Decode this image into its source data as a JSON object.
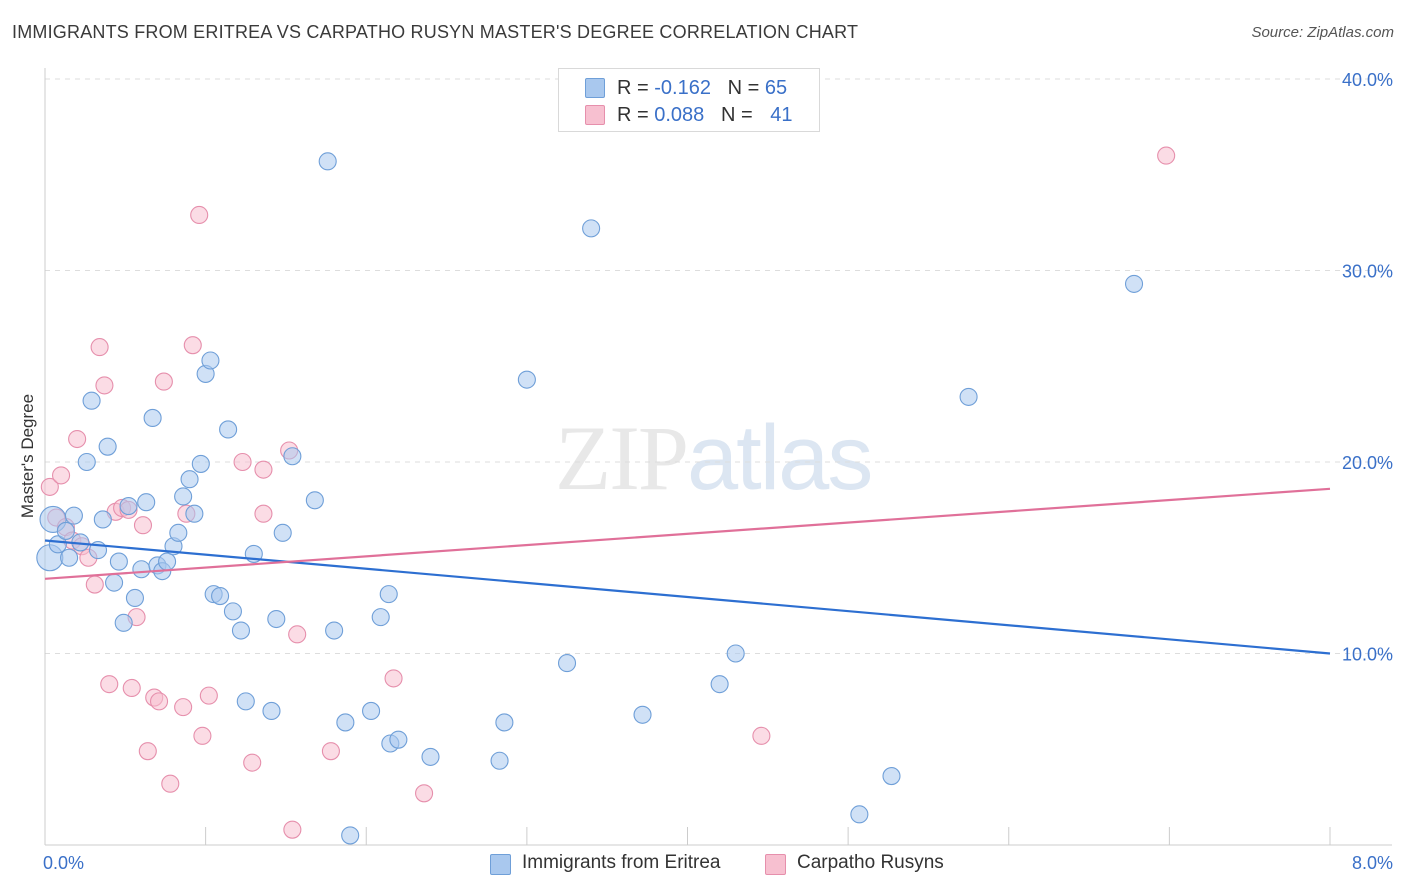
{
  "header": {
    "title": "IMMIGRANTS FROM ERITREA VS CARPATHO RUSYN MASTER'S DEGREE CORRELATION CHART",
    "source": "Source: ZipAtlas.com"
  },
  "watermark": {
    "zip": "ZIP",
    "atlas": "atlas"
  },
  "legend_top": {
    "rows": [
      {
        "r_label": "R =",
        "r_value": "-0.162",
        "n_label": "N =",
        "n_value": "65"
      },
      {
        "r_label": "R =",
        "r_value": "0.088",
        "n_label": "N =",
        "n_value": "41"
      }
    ]
  },
  "legend_bottom": {
    "items": [
      {
        "label": "Immigrants from Eritrea"
      },
      {
        "label": "Carpatho Rusyns"
      }
    ]
  },
  "colors": {
    "blue_fill": "#a9c8ee",
    "blue_stroke": "#6f9fd8",
    "blue_line": "#2d6fd1",
    "pink_fill": "#f7c0d0",
    "pink_stroke": "#e68fac",
    "pink_line": "#e07099",
    "axis_label": "#3a70c8",
    "grid": "#dddddd"
  },
  "chart_data": {
    "type": "scatter",
    "title": "IMMIGRANTS FROM ERITREA VS CARPATHO RUSYN MASTER'S DEGREE CORRELATION CHART",
    "xlabel": "",
    "ylabel": "Master's Degree",
    "xlim": [
      0,
      8
    ],
    "ylim": [
      0,
      40
    ],
    "x_tick_labels": [
      "0.0%",
      "8.0%"
    ],
    "y_ticks": [
      10,
      20,
      30,
      40
    ],
    "y_tick_labels": [
      "10.0%",
      "20.0%",
      "30.0%",
      "40.0%"
    ],
    "grid": true,
    "series": [
      {
        "name": "Immigrants from Eritrea",
        "r": -0.162,
        "n": 65,
        "trend": {
          "x": [
            0,
            8
          ],
          "y": [
            15.9,
            10.0
          ]
        },
        "points": [
          {
            "x": 0.03,
            "y": 15.0,
            "big": true
          },
          {
            "x": 0.05,
            "y": 17.0,
            "big": true
          },
          {
            "x": 0.08,
            "y": 15.7
          },
          {
            "x": 0.13,
            "y": 16.4
          },
          {
            "x": 0.15,
            "y": 15.0
          },
          {
            "x": 0.18,
            "y": 17.2
          },
          {
            "x": 0.22,
            "y": 15.8
          },
          {
            "x": 0.26,
            "y": 20.0
          },
          {
            "x": 0.29,
            "y": 23.2
          },
          {
            "x": 0.33,
            "y": 15.4
          },
          {
            "x": 0.36,
            "y": 17.0
          },
          {
            "x": 0.39,
            "y": 20.8
          },
          {
            "x": 0.43,
            "y": 13.7
          },
          {
            "x": 0.46,
            "y": 14.8
          },
          {
            "x": 0.49,
            "y": 11.6
          },
          {
            "x": 0.52,
            "y": 17.7
          },
          {
            "x": 0.56,
            "y": 12.9
          },
          {
            "x": 0.6,
            "y": 14.4
          },
          {
            "x": 0.63,
            "y": 17.9
          },
          {
            "x": 0.67,
            "y": 22.3
          },
          {
            "x": 0.7,
            "y": 14.6
          },
          {
            "x": 0.73,
            "y": 14.3
          },
          {
            "x": 0.76,
            "y": 14.8
          },
          {
            "x": 0.8,
            "y": 15.6
          },
          {
            "x": 0.83,
            "y": 16.3
          },
          {
            "x": 0.86,
            "y": 18.2
          },
          {
            "x": 0.9,
            "y": 19.1
          },
          {
            "x": 0.93,
            "y": 17.3
          },
          {
            "x": 0.97,
            "y": 19.9
          },
          {
            "x": 1.0,
            "y": 24.6
          },
          {
            "x": 1.03,
            "y": 25.3
          },
          {
            "x": 1.05,
            "y": 13.1
          },
          {
            "x": 1.09,
            "y": 13.0
          },
          {
            "x": 1.14,
            "y": 21.7
          },
          {
            "x": 1.17,
            "y": 12.2
          },
          {
            "x": 1.22,
            "y": 11.2
          },
          {
            "x": 1.25,
            "y": 7.5
          },
          {
            "x": 1.3,
            "y": 15.2
          },
          {
            "x": 1.41,
            "y": 7.0
          },
          {
            "x": 1.44,
            "y": 11.8
          },
          {
            "x": 1.48,
            "y": 16.3
          },
          {
            "x": 1.54,
            "y": 20.3
          },
          {
            "x": 1.68,
            "y": 18.0
          },
          {
            "x": 1.76,
            "y": 35.7
          },
          {
            "x": 1.8,
            "y": 11.2
          },
          {
            "x": 1.87,
            "y": 6.4
          },
          {
            "x": 1.9,
            "y": 0.5
          },
          {
            "x": 2.03,
            "y": 7.0
          },
          {
            "x": 2.09,
            "y": 11.9
          },
          {
            "x": 2.15,
            "y": 5.3
          },
          {
            "x": 2.2,
            "y": 5.5
          },
          {
            "x": 2.14,
            "y": 13.1
          },
          {
            "x": 2.4,
            "y": 4.6
          },
          {
            "x": 2.83,
            "y": 4.4
          },
          {
            "x": 2.86,
            "y": 6.4
          },
          {
            "x": 3.0,
            "y": 24.3
          },
          {
            "x": 3.25,
            "y": 9.5
          },
          {
            "x": 3.4,
            "y": 32.2
          },
          {
            "x": 3.72,
            "y": 6.8
          },
          {
            "x": 4.2,
            "y": 8.4
          },
          {
            "x": 4.3,
            "y": 10.0
          },
          {
            "x": 5.07,
            "y": 1.6
          },
          {
            "x": 5.27,
            "y": 3.6
          },
          {
            "x": 5.75,
            "y": 23.4
          },
          {
            "x": 6.78,
            "y": 29.3
          }
        ]
      },
      {
        "name": "Carpatho Rusyns",
        "r": 0.088,
        "n": 41,
        "trend": {
          "x": [
            0,
            8
          ],
          "y": [
            13.9,
            18.6
          ]
        },
        "points": [
          {
            "x": 0.03,
            "y": 18.7
          },
          {
            "x": 0.07,
            "y": 17.1
          },
          {
            "x": 0.1,
            "y": 19.3
          },
          {
            "x": 0.13,
            "y": 16.6
          },
          {
            "x": 0.17,
            "y": 15.9
          },
          {
            "x": 0.2,
            "y": 21.2
          },
          {
            "x": 0.23,
            "y": 15.6
          },
          {
            "x": 0.27,
            "y": 15.0
          },
          {
            "x": 0.31,
            "y": 13.6
          },
          {
            "x": 0.34,
            "y": 26.0
          },
          {
            "x": 0.37,
            "y": 24.0
          },
          {
            "x": 0.4,
            "y": 8.4
          },
          {
            "x": 0.44,
            "y": 17.4
          },
          {
            "x": 0.48,
            "y": 17.6
          },
          {
            "x": 0.52,
            "y": 17.5
          },
          {
            "x": 0.54,
            "y": 8.2
          },
          {
            "x": 0.57,
            "y": 11.9
          },
          {
            "x": 0.61,
            "y": 16.7
          },
          {
            "x": 0.64,
            "y": 4.9
          },
          {
            "x": 0.68,
            "y": 7.7
          },
          {
            "x": 0.71,
            "y": 7.5
          },
          {
            "x": 0.74,
            "y": 24.2
          },
          {
            "x": 0.78,
            "y": 3.2
          },
          {
            "x": 0.86,
            "y": 7.2
          },
          {
            "x": 0.88,
            "y": 17.3
          },
          {
            "x": 0.92,
            "y": 26.1
          },
          {
            "x": 0.96,
            "y": 32.9
          },
          {
            "x": 0.98,
            "y": 5.7
          },
          {
            "x": 1.02,
            "y": 7.8
          },
          {
            "x": 1.23,
            "y": 20.0
          },
          {
            "x": 1.29,
            "y": 4.3
          },
          {
            "x": 1.36,
            "y": 19.6
          },
          {
            "x": 1.36,
            "y": 17.3
          },
          {
            "x": 1.52,
            "y": 20.6
          },
          {
            "x": 1.54,
            "y": 0.8
          },
          {
            "x": 1.57,
            "y": 11.0
          },
          {
            "x": 1.78,
            "y": 4.9
          },
          {
            "x": 2.17,
            "y": 8.7
          },
          {
            "x": 2.36,
            "y": 2.7
          },
          {
            "x": 4.46,
            "y": 5.7
          },
          {
            "x": 6.98,
            "y": 36.0
          }
        ]
      }
    ]
  }
}
